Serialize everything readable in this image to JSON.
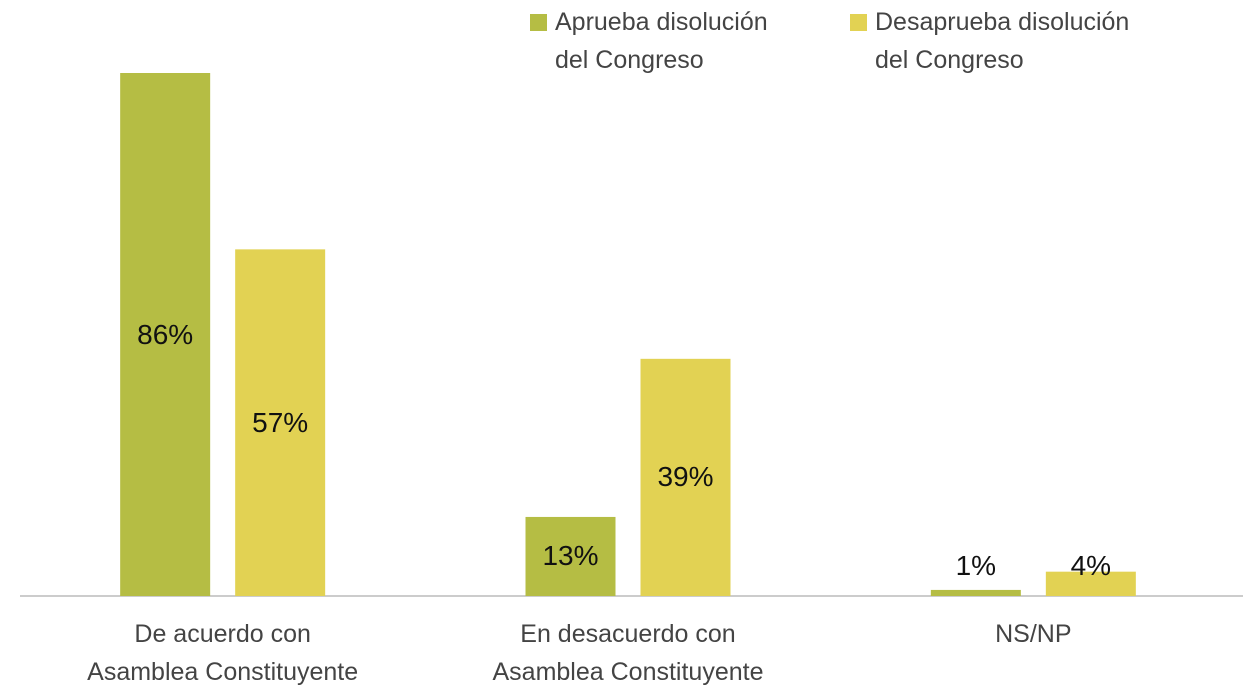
{
  "chart_data": {
    "type": "bar",
    "categories": [
      "De acuerdo con\nAsamblea Constituyente",
      "En desacuerdo con\nAsamblea Constituyente",
      "NS/NP"
    ],
    "series": [
      {
        "name": "Aprueba disolución\ndel Congreso",
        "color": "#b5bd44",
        "values": [
          86,
          13,
          1
        ],
        "value_labels": [
          "86%",
          "13%",
          "1%"
        ]
      },
      {
        "name": "Desaprueba disolución\ndel Congreso",
        "color": "#e2d253",
        "values": [
          57,
          39,
          4
        ],
        "value_labels": [
          "57%",
          "39%",
          "4%"
        ]
      }
    ],
    "legend": "top-right",
    "grid": false
  }
}
